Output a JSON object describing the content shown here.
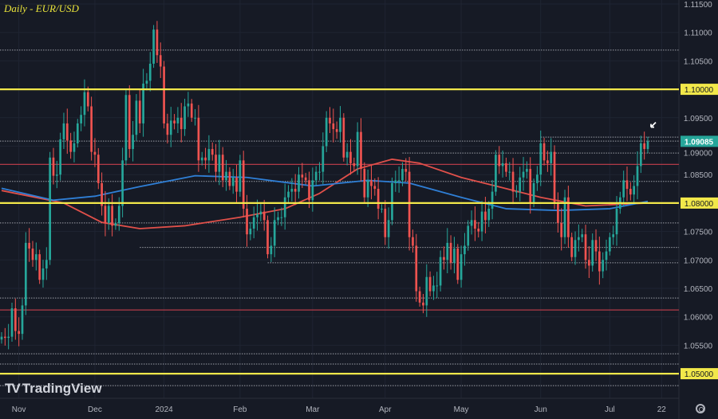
{
  "title": "Daily - EUR/USD",
  "brand": "TradingView",
  "colors": {
    "background": "#161a25",
    "grid": "#1f2432",
    "up": "#26a69a",
    "down": "#ef5350",
    "support_resistance": "#f2e84a",
    "red_level": "#b23a48",
    "dotted_level": "#c8cbd2",
    "ma_red": "#e0504a",
    "ma_blue": "#2f7fd6",
    "last_price_bg": "#26a69a"
  },
  "icons": {
    "settings": "gear-icon",
    "marker": "arrow-icon"
  },
  "chart_data": {
    "type": "candlestick",
    "symbol": "EUR/USD",
    "timeframe": "Daily",
    "ylim": [
      1.0465,
      1.1155
    ],
    "yticks": [
      "1.11500",
      "1.11000",
      "1.10500",
      "1.10000",
      "1.09500",
      "1.09000",
      "1.08500",
      "1.08000",
      "1.07500",
      "1.07000",
      "1.06500",
      "1.06000",
      "1.05500",
      "1.05000"
    ],
    "xticks": [
      {
        "label": "Nov",
        "date": "2023-11-01"
      },
      {
        "label": "Dec",
        "date": "2023-12-01"
      },
      {
        "label": "2024",
        "date": "2024-01-02"
      },
      {
        "label": "Feb",
        "date": "2024-02-01"
      },
      {
        "label": "Mar",
        "date": "2024-03-01"
      },
      {
        "label": "Apr",
        "date": "2024-04-01"
      },
      {
        "label": "May",
        "date": "2024-05-01"
      },
      {
        "label": "Jun",
        "date": "2024-06-03"
      },
      {
        "label": "Jul",
        "date": "2024-07-01"
      },
      {
        "label": "22",
        "date": "2024-07-22"
      }
    ],
    "last_price": "1.09085",
    "closes": [
      [
        "2023-10-25",
        1.0565
      ],
      [
        "2023-10-26",
        1.0563
      ],
      [
        "2023-10-27",
        1.0565
      ],
      [
        "2023-10-30",
        1.0615
      ],
      [
        "2023-10-31",
        1.0575
      ],
      [
        "2023-11-01",
        1.057
      ],
      [
        "2023-11-02",
        1.062
      ],
      [
        "2023-11-03",
        1.073
      ],
      [
        "2023-11-06",
        1.072
      ],
      [
        "2023-11-07",
        1.07
      ],
      [
        "2023-11-08",
        1.071
      ],
      [
        "2023-11-09",
        1.0665
      ],
      [
        "2023-11-10",
        1.0685
      ],
      [
        "2023-11-13",
        1.07
      ],
      [
        "2023-11-14",
        1.088
      ],
      [
        "2023-11-15",
        1.0848
      ],
      [
        "2023-11-16",
        1.085
      ],
      [
        "2023-11-17",
        1.0912
      ],
      [
        "2023-11-20",
        1.094
      ],
      [
        "2023-11-21",
        1.091
      ],
      [
        "2023-11-22",
        1.089
      ],
      [
        "2023-11-23",
        1.0905
      ],
      [
        "2023-11-24",
        1.094
      ],
      [
        "2023-11-27",
        1.0955
      ],
      [
        "2023-11-28",
        1.0995
      ],
      [
        "2023-11-29",
        1.097
      ],
      [
        "2023-11-30",
        1.089
      ],
      [
        "2023-12-01",
        1.0885
      ],
      [
        "2023-12-04",
        1.0835
      ],
      [
        "2023-12-05",
        1.0795
      ],
      [
        "2023-12-06",
        1.0765
      ],
      [
        "2023-12-07",
        1.0795
      ],
      [
        "2023-12-08",
        1.076
      ],
      [
        "2023-12-11",
        1.0765
      ],
      [
        "2023-12-12",
        1.0795
      ],
      [
        "2023-12-13",
        1.0875
      ],
      [
        "2023-12-14",
        1.099
      ],
      [
        "2023-12-15",
        1.0895
      ],
      [
        "2023-12-18",
        1.092
      ],
      [
        "2023-12-19",
        1.098
      ],
      [
        "2023-12-20",
        1.094
      ],
      [
        "2023-12-21",
        1.101
      ],
      [
        "2023-12-22",
        1.1015
      ],
      [
        "2023-12-26",
        1.1045
      ],
      [
        "2023-12-27",
        1.1105
      ],
      [
        "2023-12-28",
        1.106
      ],
      [
        "2023-12-29",
        1.104
      ],
      [
        "2024-01-02",
        1.094
      ],
      [
        "2024-01-03",
        1.092
      ],
      [
        "2024-01-04",
        1.0945
      ],
      [
        "2024-01-05",
        1.094
      ],
      [
        "2024-01-08",
        1.095
      ],
      [
        "2024-01-09",
        1.093
      ],
      [
        "2024-01-10",
        1.097
      ],
      [
        "2024-01-11",
        1.0975
      ],
      [
        "2024-01-12",
        1.095
      ],
      [
        "2024-01-15",
        1.095
      ],
      [
        "2024-01-16",
        1.0875
      ],
      [
        "2024-01-17",
        1.088
      ],
      [
        "2024-01-18",
        1.0875
      ],
      [
        "2024-01-19",
        1.0895
      ],
      [
        "2024-01-22",
        1.0885
      ],
      [
        "2024-01-23",
        1.0855
      ],
      [
        "2024-01-24",
        1.0885
      ],
      [
        "2024-01-25",
        1.084
      ],
      [
        "2024-01-26",
        1.0855
      ],
      [
        "2024-01-29",
        1.083
      ],
      [
        "2024-01-30",
        1.0845
      ],
      [
        "2024-01-31",
        1.082
      ],
      [
        "2024-02-01",
        1.0875
      ],
      [
        "2024-02-02",
        1.079
      ],
      [
        "2024-02-05",
        1.0745
      ],
      [
        "2024-02-06",
        1.0755
      ],
      [
        "2024-02-07",
        1.0775
      ],
      [
        "2024-02-08",
        1.078
      ],
      [
        "2024-02-09",
        1.0785
      ],
      [
        "2024-02-12",
        1.077
      ],
      [
        "2024-02-13",
        1.071
      ],
      [
        "2024-02-14",
        1.0725
      ],
      [
        "2024-02-15",
        1.077
      ],
      [
        "2024-02-16",
        1.0775
      ],
      [
        "2024-02-19",
        1.0775
      ],
      [
        "2024-02-20",
        1.081
      ],
      [
        "2024-02-21",
        1.082
      ],
      [
        "2024-02-22",
        1.0825
      ],
      [
        "2024-02-23",
        1.082
      ],
      [
        "2024-02-26",
        1.085
      ],
      [
        "2024-02-27",
        1.0845
      ],
      [
        "2024-02-28",
        1.084
      ],
      [
        "2024-02-29",
        1.0805
      ],
      [
        "2024-03-01",
        1.084
      ],
      [
        "2024-03-04",
        1.0855
      ],
      [
        "2024-03-05",
        1.0855
      ],
      [
        "2024-03-06",
        1.09
      ],
      [
        "2024-03-07",
        1.095
      ],
      [
        "2024-03-08",
        1.094
      ],
      [
        "2024-03-11",
        1.093
      ],
      [
        "2024-03-12",
        1.0925
      ],
      [
        "2024-03-13",
        1.095
      ],
      [
        "2024-03-14",
        1.088
      ],
      [
        "2024-03-15",
        1.089
      ],
      [
        "2024-03-18",
        1.087
      ],
      [
        "2024-03-19",
        1.0865
      ],
      [
        "2024-03-20",
        1.0925
      ],
      [
        "2024-03-21",
        1.086
      ],
      [
        "2024-03-22",
        1.081
      ],
      [
        "2024-03-25",
        1.084
      ],
      [
        "2024-03-26",
        1.083
      ],
      [
        "2024-03-27",
        1.0825
      ],
      [
        "2024-03-28",
        1.079
      ],
      [
        "2024-03-29",
        1.079
      ],
      [
        "2024-04-01",
        1.074
      ],
      [
        "2024-04-02",
        1.077
      ],
      [
        "2024-04-03",
        1.0835
      ],
      [
        "2024-04-04",
        1.084
      ],
      [
        "2024-04-05",
        1.084
      ],
      [
        "2024-04-08",
        1.086
      ],
      [
        "2024-04-09",
        1.0855
      ],
      [
        "2024-04-10",
        1.074
      ],
      [
        "2024-04-11",
        1.0725
      ],
      [
        "2024-04-12",
        1.0645
      ],
      [
        "2024-04-15",
        1.0625
      ],
      [
        "2024-04-16",
        1.062
      ],
      [
        "2024-04-17",
        1.067
      ],
      [
        "2024-04-18",
        1.0645
      ],
      [
        "2024-04-19",
        1.0655
      ],
      [
        "2024-04-22",
        1.0655
      ],
      [
        "2024-04-23",
        1.0705
      ],
      [
        "2024-04-24",
        1.07
      ],
      [
        "2024-04-25",
        1.073
      ],
      [
        "2024-04-26",
        1.0695
      ],
      [
        "2024-04-29",
        1.072
      ],
      [
        "2024-04-30",
        1.0665
      ],
      [
        "2024-05-01",
        1.071
      ],
      [
        "2024-05-02",
        1.0725
      ],
      [
        "2024-05-03",
        1.076
      ],
      [
        "2024-05-06",
        1.077
      ],
      [
        "2024-05-07",
        1.0755
      ],
      [
        "2024-05-08",
        1.075
      ],
      [
        "2024-05-09",
        1.0785
      ],
      [
        "2024-05-10",
        1.077
      ],
      [
        "2024-05-13",
        1.079
      ],
      [
        "2024-05-14",
        1.082
      ],
      [
        "2024-05-15",
        1.0885
      ],
      [
        "2024-05-16",
        1.0865
      ],
      [
        "2024-05-17",
        1.087
      ],
      [
        "2024-05-20",
        1.0855
      ],
      [
        "2024-05-21",
        1.0855
      ],
      [
        "2024-05-22",
        1.082
      ],
      [
        "2024-05-23",
        1.082
      ],
      [
        "2024-05-24",
        1.0845
      ],
      [
        "2024-05-27",
        1.0855
      ],
      [
        "2024-05-28",
        1.086
      ],
      [
        "2024-05-29",
        1.08
      ],
      [
        "2024-05-30",
        1.0835
      ],
      [
        "2024-05-31",
        1.085
      ],
      [
        "2024-06-03",
        1.0905
      ],
      [
        "2024-06-04",
        1.0875
      ],
      [
        "2024-06-05",
        1.087
      ],
      [
        "2024-06-06",
        1.089
      ],
      [
        "2024-06-07",
        1.08
      ],
      [
        "2024-06-10",
        1.0765
      ],
      [
        "2024-06-11",
        1.074
      ],
      [
        "2024-06-12",
        1.081
      ],
      [
        "2024-06-13",
        1.074
      ],
      [
        "2024-06-14",
        1.0705
      ],
      [
        "2024-06-17",
        1.0735
      ],
      [
        "2024-06-18",
        1.074
      ],
      [
        "2024-06-19",
        1.0745
      ],
      [
        "2024-06-20",
        1.07
      ],
      [
        "2024-06-21",
        1.069
      ],
      [
        "2024-06-24",
        1.0735
      ],
      [
        "2024-06-25",
        1.0715
      ],
      [
        "2024-06-26",
        1.068
      ],
      [
        "2024-06-27",
        1.07
      ],
      [
        "2024-06-28",
        1.0715
      ],
      [
        "2024-07-01",
        1.074
      ],
      [
        "2024-07-02",
        1.0745
      ],
      [
        "2024-07-03",
        1.079
      ],
      [
        "2024-07-04",
        1.081
      ],
      [
        "2024-07-05",
        1.084
      ],
      [
        "2024-07-08",
        1.0825
      ],
      [
        "2024-07-09",
        1.0815
      ],
      [
        "2024-07-10",
        1.083
      ],
      [
        "2024-07-11",
        1.0865
      ],
      [
        "2024-07-12",
        1.0905
      ],
      [
        "2024-07-15",
        1.0895
      ],
      [
        "2024-07-16",
        1.09085
      ]
    ],
    "moving_averages": [
      {
        "color": "#e0504a",
        "points": [
          [
            "2023-10-25",
            1.0822
          ],
          [
            "2023-11-20",
            1.08
          ],
          [
            "2023-12-05",
            1.0766
          ],
          [
            "2023-12-20",
            1.0755
          ],
          [
            "2024-01-10",
            1.076
          ],
          [
            "2024-02-01",
            1.0775
          ],
          [
            "2024-02-20",
            1.079
          ],
          [
            "2024-03-05",
            1.0817
          ],
          [
            "2024-03-20",
            1.086
          ],
          [
            "2024-04-03",
            1.0877
          ],
          [
            "2024-04-15",
            1.087
          ],
          [
            "2024-05-01",
            1.0845
          ],
          [
            "2024-05-15",
            1.083
          ],
          [
            "2024-06-03",
            1.081
          ],
          [
            "2024-06-20",
            1.0795
          ],
          [
            "2024-07-16",
            1.08
          ]
        ]
      },
      {
        "color": "#2f7fd6",
        "points": [
          [
            "2023-10-25",
            1.0826
          ],
          [
            "2023-11-15",
            1.0805
          ],
          [
            "2023-12-01",
            1.0812
          ],
          [
            "2023-12-20",
            1.0829
          ],
          [
            "2024-01-15",
            1.0848
          ],
          [
            "2024-02-05",
            1.0845
          ],
          [
            "2024-03-01",
            1.083
          ],
          [
            "2024-03-25",
            1.084
          ],
          [
            "2024-04-10",
            1.0835
          ],
          [
            "2024-05-01",
            1.081
          ],
          [
            "2024-05-20",
            1.079
          ],
          [
            "2024-06-10",
            1.0787
          ],
          [
            "2024-07-01",
            1.079
          ],
          [
            "2024-07-16",
            1.0803
          ]
        ]
      }
    ],
    "key_levels": [
      {
        "price": 1.1,
        "label": "1.10000",
        "style": "yellow"
      },
      {
        "price": 1.08,
        "label": "1.08000",
        "style": "yellow"
      },
      {
        "price": 1.05,
        "label": "1.05000",
        "style": "yellow"
      }
    ],
    "red_levels": [
      1.0868,
      1.0612
    ],
    "dotted_levels": [
      {
        "price": 1.1069
      },
      {
        "price": 1.0909
      },
      {
        "price": 1.0888,
        "from": "2024-04-08"
      },
      {
        "price": 1.0916,
        "from": "2024-06-03"
      },
      {
        "price": 1.0838
      },
      {
        "price": 1.0765
      },
      {
        "price": 1.0722,
        "from": "2023-12-20"
      },
      {
        "price": 1.0695,
        "from": "2024-02-13"
      },
      {
        "price": 1.0633
      },
      {
        "price": 1.0535
      },
      {
        "price": 1.0517
      },
      {
        "price": 1.0479
      }
    ],
    "marker": {
      "date": "2024-07-16",
      "type": "arrow"
    }
  }
}
